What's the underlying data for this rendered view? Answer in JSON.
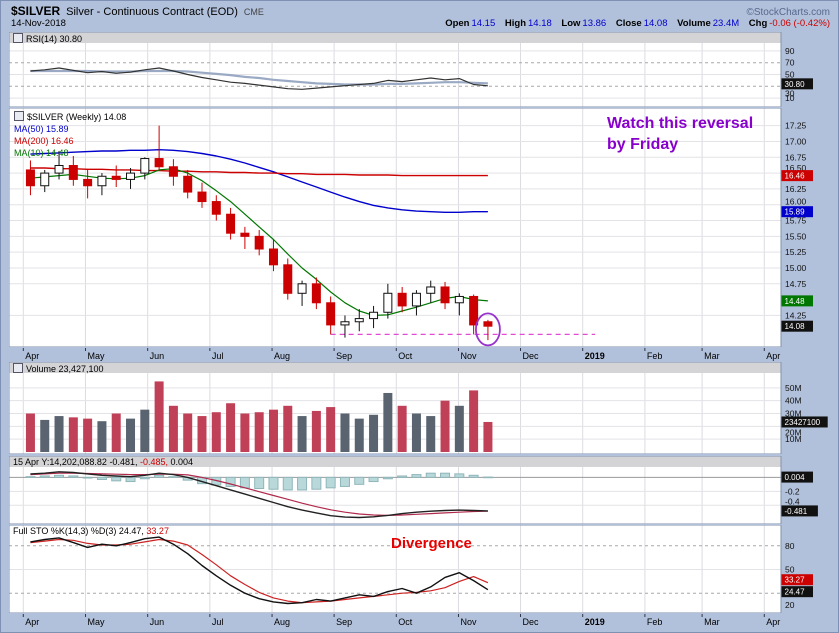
{
  "header": {
    "symbol": "$SILVER",
    "description": "Silver - Continuous Contract (EOD)",
    "exchange": "CME",
    "brand": "©StockCharts.com",
    "date": "14-Nov-2018",
    "quote": [
      {
        "label": "Open",
        "value": "14.15"
      },
      {
        "label": "High",
        "value": "14.18"
      },
      {
        "label": "Low",
        "value": "13.86"
      },
      {
        "label": "Close",
        "value": "14.08"
      },
      {
        "label": "Volume",
        "value": "23.4M"
      },
      {
        "label": "Chg",
        "value": "-0.06 (-0.42%)"
      }
    ]
  },
  "annotations": {
    "reversal_note": "Watch this reversal\nby Friday",
    "reversal_color": "#8800cc",
    "divergence": "Divergence",
    "divergence_color": "#e60000"
  },
  "axis": {
    "weeks_total": 54,
    "months": [
      {
        "label": "Apr",
        "week": 1
      },
      {
        "label": "May",
        "week": 5.35
      },
      {
        "label": "Jun",
        "week": 9.7
      },
      {
        "label": "Jul",
        "week": 14.05
      },
      {
        "label": "Aug",
        "week": 18.4
      },
      {
        "label": "Sep",
        "week": 22.74
      },
      {
        "label": "Oct",
        "week": 27.09
      },
      {
        "label": "Nov",
        "week": 31.44
      },
      {
        "label": "Dec",
        "week": 35.78
      },
      {
        "label": "2019",
        "week": 40.13,
        "bold": true
      },
      {
        "label": "Feb",
        "week": 44.48
      },
      {
        "label": "Mar",
        "week": 48.48
      },
      {
        "label": "Apr",
        "week": 52.83
      }
    ]
  },
  "chart_data": [
    {
      "id": "rsi",
      "type": "line",
      "legend": "RSI(14) 30.80",
      "ylim": [
        0,
        100
      ],
      "yticks": [
        {
          "v": 90,
          "label": "90"
        },
        {
          "v": 70,
          "label": "70",
          "dash": true
        },
        {
          "v": 50,
          "label": "50"
        },
        {
          "v": 30,
          "label": "30",
          "dash": true,
          "dy": 7
        },
        {
          "v": 10,
          "label": "10"
        }
      ],
      "boxes": [
        {
          "text": "30.80",
          "at": 30.8,
          "bg": "#111111",
          "dy": -2
        }
      ],
      "series": [
        {
          "name": "RSI(14)",
          "color": "#333333",
          "width": 1.2,
          "values": [
            56,
            58,
            61,
            57,
            53,
            55,
            52,
            54,
            58,
            61,
            56,
            50,
            45,
            41,
            37,
            35,
            32,
            29,
            26,
            25,
            27,
            29,
            31,
            33,
            35,
            40,
            38,
            41,
            44,
            41,
            43,
            33,
            30.8
          ]
        },
        {
          "name": "RSI smoothed",
          "color": "#9aaac4",
          "width": 2.2,
          "values": [
            56,
            56,
            56,
            56,
            56,
            55,
            55,
            55,
            56,
            56,
            56,
            55,
            53,
            51,
            49,
            46,
            44,
            41,
            39,
            37,
            35,
            34,
            33,
            33,
            33,
            34,
            34,
            35,
            36,
            37,
            37,
            36,
            35
          ]
        }
      ]
    },
    {
      "id": "price",
      "type": "candlestick",
      "legend": "$SILVER (Weekly) 14.08",
      "ylim": [
        13.83,
        17.45
      ],
      "down_color": "#cc0000",
      "up_color": "#ffffff",
      "yticks": [
        {
          "v": 17.25,
          "label": "17.25"
        },
        {
          "v": 17.0,
          "label": "17.00"
        },
        {
          "v": 16.75,
          "label": "16.75"
        },
        {
          "v": 16.5,
          "label": "16.50",
          "dy": -5
        },
        {
          "v": 16.25,
          "label": "16.25"
        },
        {
          "v": 16.0,
          "label": "16.00",
          "dy": -3
        },
        {
          "v": 15.75,
          "label": "15.75"
        },
        {
          "v": 15.5,
          "label": "15.50"
        },
        {
          "v": 15.25,
          "label": "15.25"
        },
        {
          "v": 15.0,
          "label": "15.00"
        },
        {
          "v": 14.75,
          "label": "14.75"
        },
        {
          "v": 14.25,
          "label": "14.25"
        }
      ],
      "boxes": [
        {
          "text": "16.46",
          "at": 16.46,
          "bg": "#cc0000"
        },
        {
          "text": "15.89",
          "at": 15.89,
          "bg": "#0000cc"
        },
        {
          "text": "14.48",
          "at": 14.48,
          "bg": "#007700"
        },
        {
          "text": "14.08",
          "at": 14.08,
          "bg": "#111111"
        }
      ],
      "candles": {
        "open": [
          16.55,
          16.3,
          16.5,
          16.62,
          16.4,
          16.3,
          16.45,
          16.4,
          16.5,
          16.73,
          16.6,
          16.45,
          16.2,
          16.05,
          15.85,
          15.55,
          15.5,
          15.3,
          15.05,
          14.6,
          14.75,
          14.45,
          14.1,
          14.15,
          14.2,
          14.3,
          14.6,
          14.4,
          14.6,
          14.7,
          14.45,
          14.55,
          14.15
        ],
        "high": [
          16.7,
          16.55,
          16.85,
          16.77,
          16.55,
          16.5,
          16.62,
          16.58,
          16.75,
          17.25,
          16.72,
          16.55,
          16.35,
          16.15,
          15.95,
          15.65,
          15.6,
          15.45,
          15.15,
          14.8,
          14.85,
          14.55,
          14.25,
          14.35,
          14.4,
          14.75,
          14.7,
          14.65,
          14.8,
          14.78,
          14.6,
          14.58,
          14.18
        ],
        "low": [
          16.15,
          16.2,
          16.4,
          16.3,
          16.1,
          16.15,
          16.28,
          16.25,
          16.4,
          16.55,
          16.3,
          16.1,
          15.95,
          15.75,
          15.45,
          15.3,
          15.2,
          14.95,
          14.5,
          14.4,
          14.35,
          13.95,
          13.9,
          14.0,
          14.05,
          14.2,
          14.3,
          14.25,
          14.45,
          14.35,
          14.25,
          13.95,
          13.86
        ],
        "close": [
          16.3,
          16.5,
          16.62,
          16.4,
          16.3,
          16.45,
          16.4,
          16.5,
          16.73,
          16.6,
          16.45,
          16.2,
          16.05,
          15.85,
          15.55,
          15.5,
          15.3,
          15.05,
          14.6,
          14.75,
          14.45,
          14.1,
          14.15,
          14.2,
          14.3,
          14.6,
          14.4,
          14.6,
          14.7,
          14.45,
          14.55,
          14.1,
          14.08
        ]
      },
      "overlays": [
        {
          "label": "MA(50) 15.89",
          "color": "#0000cc",
          "width": 1.4,
          "values": [
            16.8,
            16.81,
            16.82,
            16.83,
            16.84,
            16.85,
            16.85,
            16.86,
            16.86,
            16.87,
            16.86,
            16.84,
            16.81,
            16.77,
            16.72,
            16.66,
            16.59,
            16.52,
            16.44,
            16.36,
            16.28,
            16.2,
            16.12,
            16.05,
            15.99,
            15.95,
            15.92,
            15.9,
            15.89,
            15.88,
            15.88,
            15.89,
            15.89
          ]
        },
        {
          "label": "MA(200) 16.46",
          "color": "#cc0000",
          "width": 1.4,
          "values": [
            16.58,
            16.58,
            16.57,
            16.57,
            16.56,
            16.56,
            16.55,
            16.55,
            16.54,
            16.54,
            16.53,
            16.53,
            16.52,
            16.52,
            16.51,
            16.51,
            16.5,
            16.5,
            16.49,
            16.49,
            16.48,
            16.48,
            16.48,
            16.47,
            16.47,
            16.47,
            16.46,
            16.46,
            16.46,
            16.46,
            16.46,
            16.46,
            16.46
          ]
        },
        {
          "label": "MA(10) 14.48",
          "color": "#007700",
          "width": 1.2,
          "values": [
            16.42,
            16.44,
            16.46,
            16.48,
            16.45,
            16.42,
            16.41,
            16.42,
            16.46,
            16.55,
            16.57,
            16.5,
            16.38,
            16.22,
            16.05,
            15.85,
            15.65,
            15.45,
            15.22,
            15.0,
            14.82,
            14.62,
            14.45,
            14.32,
            14.25,
            14.26,
            14.32,
            14.38,
            14.45,
            14.52,
            14.55,
            14.5,
            14.48
          ]
        }
      ],
      "dashed_line": {
        "price": 13.95,
        "from_week": 21,
        "to_week": 39.5,
        "color": "#e14ad2"
      },
      "circle_marker": {
        "week": 32,
        "price": 14.03,
        "color": "#9933cc"
      }
    },
    {
      "id": "volume",
      "type": "bar",
      "legend": "Volume 23,427,100",
      "ylim": [
        0,
        60
      ],
      "yticks": [
        {
          "v": 50,
          "label": "50M"
        },
        {
          "v": 40,
          "label": "40M"
        },
        {
          "v": 30,
          "label": "30M"
        },
        {
          "v": 20,
          "label": "20M",
          "dy": 6
        },
        {
          "v": 10,
          "label": "10M"
        }
      ],
      "boxes": [
        {
          "text": "23427100",
          "at": 23.4,
          "bg": "#111111"
        }
      ],
      "colors": {
        "down": "#c04058",
        "up": "#5a6370"
      },
      "values": [
        30,
        25,
        28,
        27,
        26,
        24,
        30,
        26,
        33,
        55,
        36,
        30,
        28,
        31,
        38,
        30,
        31,
        33,
        36,
        28,
        32,
        35,
        30,
        26,
        29,
        46,
        36,
        30,
        28,
        40,
        36,
        48,
        23.4
      ]
    },
    {
      "id": "ppo",
      "type": "histogram-line",
      "legend_parts": [
        "15 Apr Y:14,202,088.82",
        "-0.481,",
        "-0.485,",
        "0.004"
      ],
      "ylim": [
        -0.64,
        0.12
      ],
      "yticks": [
        {
          "v": 0,
          "label": "",
          "zero": true
        },
        {
          "v": -0.2,
          "label": "-0.2"
        },
        {
          "v": -0.4,
          "label": "-0.4",
          "dy": -4
        }
      ],
      "boxes": [
        {
          "text": "0.004",
          "at": 0.004,
          "bg": "#111111"
        },
        {
          "text": "-0.481",
          "at": -0.481,
          "bg": "#111111"
        }
      ],
      "histogram": {
        "fill": "#b9d8da",
        "stroke": "#8fb6ba",
        "values": [
          0.01,
          0.02,
          0.03,
          0.02,
          -0.01,
          -0.03,
          -0.05,
          -0.06,
          -0.02,
          0.03,
          0.01,
          -0.04,
          -0.09,
          -0.11,
          -0.13,
          -0.15,
          -0.16,
          -0.17,
          -0.18,
          -0.18,
          -0.17,
          -0.15,
          -0.13,
          -0.1,
          -0.06,
          -0.02,
          0.02,
          0.04,
          0.06,
          0.06,
          0.05,
          0.03,
          0.004
        ]
      },
      "series": [
        {
          "name": "line",
          "color": "#222222",
          "width": 1.4,
          "values": [
            0.05,
            0.06,
            0.08,
            0.07,
            0.05,
            0.03,
            0.02,
            0.01,
            0.03,
            0.06,
            0.04,
            0.0,
            -0.06,
            -0.12,
            -0.18,
            -0.24,
            -0.3,
            -0.36,
            -0.42,
            -0.47,
            -0.51,
            -0.55,
            -0.57,
            -0.575,
            -0.565,
            -0.545,
            -0.52,
            -0.5,
            -0.485,
            -0.475,
            -0.47,
            -0.475,
            -0.481
          ]
        },
        {
          "name": "signal",
          "color": "#b02a4c",
          "width": 1.2,
          "values": [
            0.04,
            0.05,
            0.06,
            0.06,
            0.055,
            0.05,
            0.045,
            0.04,
            0.04,
            0.045,
            0.045,
            0.035,
            0.0,
            -0.045,
            -0.095,
            -0.15,
            -0.205,
            -0.26,
            -0.315,
            -0.37,
            -0.42,
            -0.465,
            -0.5,
            -0.525,
            -0.54,
            -0.545,
            -0.54,
            -0.53,
            -0.52,
            -0.51,
            -0.5,
            -0.49,
            -0.485
          ]
        }
      ]
    },
    {
      "id": "sto",
      "type": "line",
      "legend_parts": [
        "Full STO %K(14,3) %D(3)",
        "24.47,",
        "33.27"
      ],
      "ylim": [
        0,
        100
      ],
      "yticks": [
        {
          "v": 80,
          "label": "80",
          "dash": true
        },
        {
          "v": 50,
          "label": "50"
        },
        {
          "v": 20,
          "label": "20",
          "dash": true,
          "dy": 12
        }
      ],
      "boxes": [
        {
          "text": "33.27",
          "at": 33.27,
          "bg": "#cc0000",
          "dy": -3
        },
        {
          "text": "24.47",
          "at": 24.47,
          "bg": "#111111",
          "dy": 2
        }
      ],
      "series": [
        {
          "name": "%K",
          "color": "#111111",
          "width": 1.4,
          "values": [
            85,
            88,
            90,
            84,
            78,
            82,
            80,
            84,
            89,
            91,
            82,
            70,
            55,
            42,
            30,
            20,
            13,
            9,
            7,
            8,
            12,
            10,
            14,
            18,
            16,
            22,
            26,
            20,
            28,
            40,
            46,
            36,
            24.47
          ]
        },
        {
          "name": "%D",
          "color": "#cc2222",
          "width": 1.2,
          "values": [
            84,
            86,
            88,
            87,
            83,
            81,
            81,
            82,
            85,
            88,
            86,
            81,
            69,
            56,
            42,
            31,
            21,
            14,
            10,
            8,
            9,
            10,
            12,
            14,
            16,
            18,
            20,
            21,
            23,
            27,
            35,
            41,
            33.27
          ]
        }
      ]
    }
  ]
}
